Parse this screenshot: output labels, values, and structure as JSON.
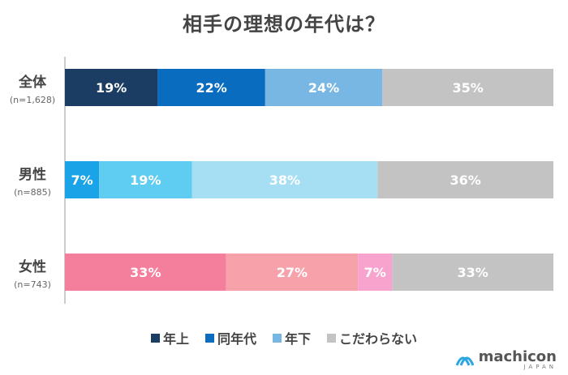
{
  "title": "相手の理想の年代は？",
  "chart_data": {
    "type": "bar",
    "stacked": true,
    "orientation": "horizontal",
    "percent": true,
    "categories": [
      {
        "label": "全体",
        "n": "(n=1,628)"
      },
      {
        "label": "男性",
        "n": "(n=885)"
      },
      {
        "label": "女性",
        "n": "(n=743)"
      }
    ],
    "legend": [
      {
        "label": "年上",
        "color": "#1b3d63"
      },
      {
        "label": "同年代",
        "color": "#0a6cbf"
      },
      {
        "label": "年下",
        "color": "#78b7e3"
      },
      {
        "label": "こだわらない",
        "color": "#c3c3c3"
      }
    ],
    "rows": [
      {
        "segments": [
          {
            "value": 19,
            "label": "19%",
            "color": "#1b3d63"
          },
          {
            "value": 22,
            "label": "22%",
            "color": "#0a6cbf"
          },
          {
            "value": 24,
            "label": "24%",
            "color": "#78b7e3"
          },
          {
            "value": 35,
            "label": "35%",
            "color": "#c3c3c3"
          }
        ]
      },
      {
        "segments": [
          {
            "value": 7,
            "label": "7%",
            "color": "#1aa3e6"
          },
          {
            "value": 19,
            "label": "19%",
            "color": "#5fcdf1"
          },
          {
            "value": 38,
            "label": "38%",
            "color": "#a6def4"
          },
          {
            "value": 36,
            "label": "36%",
            "color": "#c3c3c3"
          }
        ]
      },
      {
        "segments": [
          {
            "value": 33,
            "label": "33%",
            "color": "#f47f9c"
          },
          {
            "value": 27,
            "label": "27%",
            "color": "#f7a1aa"
          },
          {
            "value": 7,
            "label": "7%",
            "color": "#f7a3cd"
          },
          {
            "value": 33,
            "label": "33%",
            "color": "#c3c3c3"
          }
        ]
      }
    ]
  },
  "logo": {
    "main": "machicon",
    "sub": "JAPAN"
  }
}
